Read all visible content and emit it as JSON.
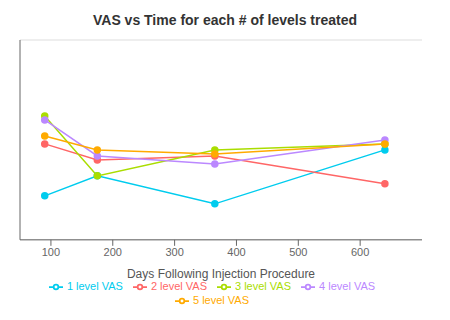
{
  "chart_data": {
    "type": "line",
    "title": "VAS vs Time for each # of levels treated",
    "xlabel": "Days Following Injection Procedure",
    "xlim": [
      50,
      700
    ],
    "ylim": [
      0,
      10
    ],
    "xticks": [
      100,
      200,
      300,
      400,
      500,
      600
    ],
    "yticks": [
      2,
      4,
      6,
      8,
      10
    ],
    "grid": true,
    "tick_labels": "x",
    "legend": "bottom",
    "marker": "circle",
    "series": [
      {
        "name": "1 level VAS",
        "color": "#00ccee",
        "x": [
          90,
          175,
          365,
          640
        ],
        "values": [
          2.2,
          3.2,
          1.8,
          4.5
        ]
      },
      {
        "name": "2 level VAS",
        "color": "#ff6666",
        "x": [
          90,
          175,
          365,
          640
        ],
        "values": [
          4.8,
          4.0,
          4.2,
          2.8
        ]
      },
      {
        "name": "3 level VAS",
        "color": "#aadd00",
        "x": [
          90,
          175,
          365,
          640
        ],
        "values": [
          6.2,
          3.2,
          4.5,
          4.8
        ]
      },
      {
        "name": "4 level VAS",
        "color": "#bb88ff",
        "x": [
          90,
          175,
          365,
          640
        ],
        "values": [
          6.0,
          4.2,
          3.8,
          5.0
        ]
      },
      {
        "name": "5 level VAS",
        "color": "#ffaa00",
        "x": [
          90,
          175,
          365,
          640
        ],
        "values": [
          5.2,
          4.5,
          4.3,
          4.8
        ]
      }
    ]
  }
}
